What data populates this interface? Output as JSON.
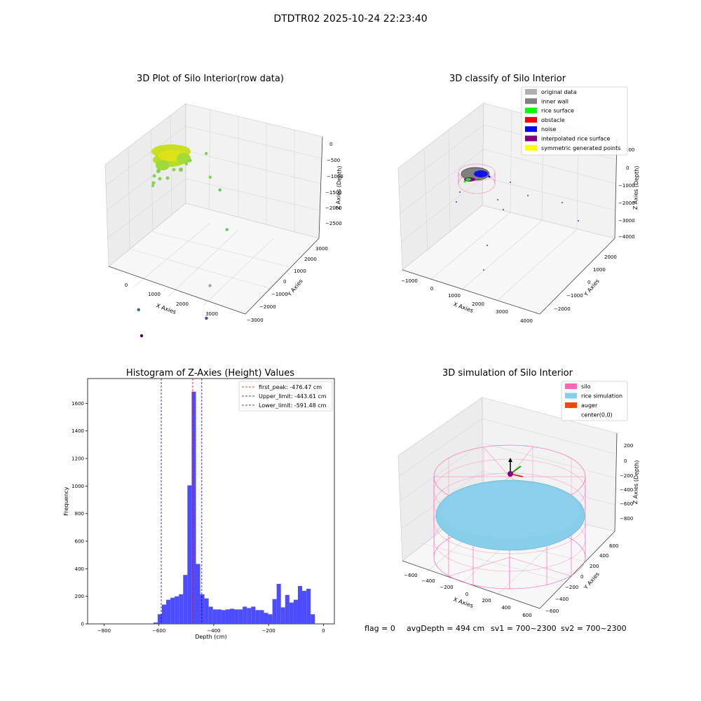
{
  "figure": {
    "suptitle": "DTDTR02 2025-10-24 22:23:40",
    "footer": {
      "flag": "flag = 0",
      "avg": "avgDepth = 494 cm",
      "sv1": "sv1 = 700~2300",
      "sv2": "sv2 = 700~2300"
    }
  },
  "chart_data": [
    {
      "type": "scatter",
      "title": "3D Plot of Silo Interior(row data)",
      "xlabel": "X Axies",
      "ylabel": "Y Axies",
      "zlabel": "Z Axies (Depth)",
      "x_ticks": [
        "0",
        "1000",
        "2000",
        "3000"
      ],
      "y_ticks": [
        "−3000",
        "−2000",
        "−1000",
        "0",
        "1000",
        "2000",
        "3000"
      ],
      "z_ticks": [
        "0",
        "−500",
        "−1000",
        "−1500",
        "−2000",
        "−2500"
      ],
      "outliers": [
        {
          "x": 1300,
          "y": 1500,
          "z": -800,
          "color": "#7fd34e"
        },
        {
          "x": 1600,
          "y": 1200,
          "z": -1200,
          "color": "#7fd34e"
        },
        {
          "x": 2000,
          "y": 1000,
          "z": -1300,
          "color": "#5ec962"
        },
        {
          "x": 2700,
          "y": 200,
          "z": -1700,
          "color": "#5ec962"
        },
        {
          "x": 3100,
          "y": -1200,
          "z": -2300,
          "color": "#a0a0a0"
        },
        {
          "x": 3500,
          "y": -2000,
          "z": -2600,
          "color": "#3b528b"
        },
        {
          "x": 1900,
          "y": -2500,
          "z": -2600,
          "color": "#31688e"
        },
        {
          "x": 2300,
          "y": -3000,
          "z": -2900,
          "color": "#440154"
        }
      ]
    },
    {
      "type": "scatter",
      "title": "3D classify of Silo Interior",
      "xlabel": "X Axies",
      "ylabel": "Y Axies",
      "zlabel": "Z Axies (Depth)",
      "x_ticks": [
        "−1000",
        "0",
        "1000",
        "2000",
        "3000",
        "4000"
      ],
      "y_ticks": [
        "−2000",
        "−1000",
        "0",
        "1000",
        "2000"
      ],
      "z_ticks": [
        "100",
        "0",
        "−1000",
        "−2000",
        "−3000",
        "−4000"
      ],
      "legend": [
        {
          "label": "original data",
          "color": "#b0b0b0"
        },
        {
          "label": "inner wall",
          "color": "#808080"
        },
        {
          "label": "rice surface",
          "color": "#00ff00"
        },
        {
          "label": "obstacle",
          "color": "#ff0000"
        },
        {
          "label": "noise",
          "color": "#0000ff"
        },
        {
          "label": "interpolated rice surface",
          "color": "#800080"
        },
        {
          "label": "symmetric generated points",
          "color": "#ffff00"
        }
      ]
    },
    {
      "type": "bar",
      "title": "Histogram of Z-Axies (Height) Values",
      "xlabel": "Depth (cm)",
      "ylabel": "Frequency",
      "xlim": [
        -860,
        40
      ],
      "ylim": [
        0,
        1780
      ],
      "x_ticks": [
        {
          "value": -800,
          "label": "−800"
        },
        {
          "value": -600,
          "label": "−600"
        },
        {
          "value": -400,
          "label": "−400"
        },
        {
          "value": -200,
          "label": "−200"
        },
        {
          "value": 0,
          "label": "0"
        }
      ],
      "y_ticks": [
        {
          "value": 0,
          "label": "0"
        },
        {
          "value": 200,
          "label": "200"
        },
        {
          "value": 400,
          "label": "400"
        },
        {
          "value": 600,
          "label": "600"
        },
        {
          "value": 800,
          "label": "800"
        },
        {
          "value": 1000,
          "label": "1000"
        },
        {
          "value": 1200,
          "label": "1200"
        },
        {
          "value": 1400,
          "label": "1400"
        },
        {
          "value": 1600,
          "label": "1600"
        }
      ],
      "bin_start": -620,
      "bin_width": 15.5,
      "bar_color": "#4d4dff",
      "values": [
        10,
        70,
        140,
        175,
        190,
        200,
        215,
        355,
        1005,
        1685,
        435,
        215,
        185,
        125,
        105,
        105,
        100,
        105,
        110,
        105,
        105,
        125,
        115,
        125,
        100,
        100,
        80,
        70,
        180,
        290,
        120,
        210,
        155,
        175,
        275,
        240,
        255,
        70
      ],
      "vlines": [
        {
          "label": "first_peak: -476.47 cm",
          "x": -476.47,
          "color": "#ff0000"
        },
        {
          "label": "Upper_limit: -443.61 cm",
          "x": -443.61,
          "color": "#0000cc"
        },
        {
          "label": "Lower_limit: -591.48 cm",
          "x": -591.48,
          "color": "#0000cc"
        }
      ]
    },
    {
      "type": "scatter",
      "title": "3D simulation of Silo Interior",
      "xlabel": "X Axies",
      "ylabel": "Y Axies",
      "zlabel": "Z Axies (Depth)",
      "x_ticks": [
        "−600",
        "−400",
        "−200",
        "0",
        "200",
        "400",
        "600"
      ],
      "y_ticks": [
        "−600",
        "−400",
        "−200",
        "0",
        "200",
        "400",
        "600"
      ],
      "z_ticks": [
        "200",
        "0",
        "−200",
        "−400",
        "−600",
        "−800"
      ],
      "legend": [
        {
          "label": "silo",
          "color": "#ff69b4"
        },
        {
          "label": "rice simulation",
          "color": "#87ceeb"
        },
        {
          "label": "auger",
          "color": "#ff4500"
        },
        {
          "label": "center(0,0)",
          "color": ""
        }
      ]
    }
  ]
}
